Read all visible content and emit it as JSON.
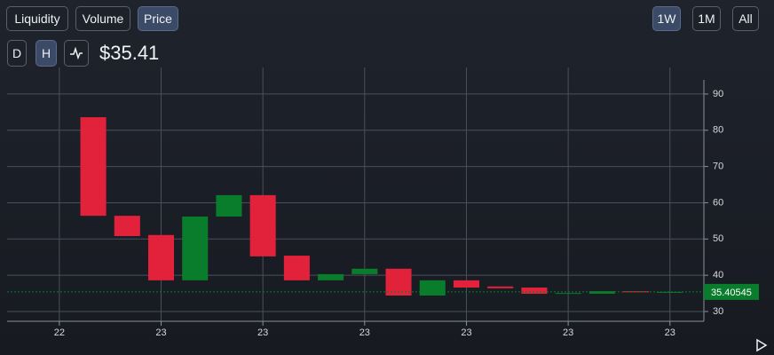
{
  "controls": {
    "metrics": [
      "Liquidity",
      "Volume",
      "Price"
    ],
    "ranges": [
      "1W",
      "1M",
      "All"
    ],
    "intervals": [
      "D",
      "H"
    ]
  },
  "price": "$35.41",
  "chart_data": {
    "type": "candlestick",
    "x": [
      1,
      2,
      3,
      4,
      5,
      6,
      7,
      8,
      9,
      10,
      11,
      12,
      13,
      14,
      15,
      16,
      17,
      18
    ],
    "open": [
      83.6,
      56.4,
      51.1,
      38.6,
      56.2,
      62.1,
      45.4,
      38.6,
      40.3,
      41.8,
      34.4,
      38.6,
      36.9,
      36.6,
      34.9,
      34.9,
      35.6,
      35.3
    ],
    "close": [
      56.4,
      50.8,
      38.6,
      56.2,
      62.1,
      45.2,
      38.6,
      40.3,
      41.8,
      34.4,
      38.6,
      36.6,
      36.4,
      34.9,
      35.1,
      35.6,
      35.3,
      35.4
    ],
    "up_color": "#0a7d2c",
    "down_color": "#e2223a",
    "last_price": 35.40545,
    "xlim": [
      -1.54,
      19.0
    ],
    "ylim": [
      27.3,
      93.9
    ],
    "xticks": [
      {
        "value": 0,
        "label": "22"
      },
      {
        "value": 3,
        "label": "23"
      },
      {
        "value": 6,
        "label": "23"
      },
      {
        "value": 9,
        "label": "23"
      },
      {
        "value": 12,
        "label": "23"
      },
      {
        "value": 15,
        "label": "23"
      },
      {
        "value": 18,
        "label": "23"
      }
    ],
    "yticks": [
      30,
      40,
      50,
      60,
      70,
      80,
      90
    ],
    "grid": true
  }
}
